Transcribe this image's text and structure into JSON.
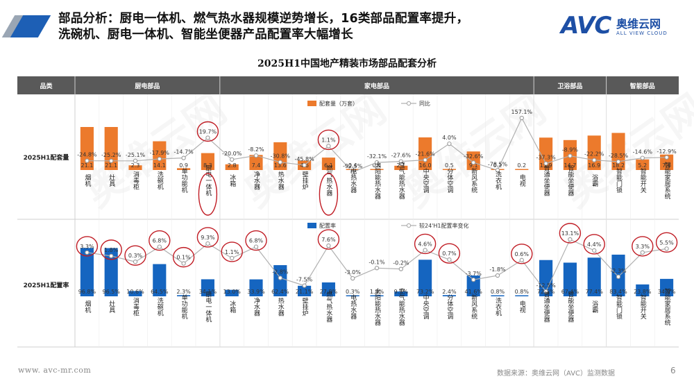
{
  "header": {
    "title_line1": "部品分析：厨电一体机、燃气热水器规模逆势增长，16类部品配置率提升，",
    "title_line2": "洗碗机、厨电一体机、智能坐便器产品配置率大幅增长"
  },
  "logo": {
    "mark": "AVC",
    "cn": "奥维云网",
    "en": "ALL VIEW CLOUD",
    "color": "#1d4fa5"
  },
  "watermark": "奥维云网",
  "footer": {
    "url": "www. avc-mr.com",
    "source": "数据来源：奥维云网（AVC）监测数据",
    "page": "6"
  },
  "colors": {
    "orange": "#ec7a2c",
    "blue": "#1565c0",
    "line": "#b0b0b0",
    "circle": "#c01c24",
    "header_bg": "#595959"
  },
  "chart_data": {
    "type": "bar",
    "title": "2025H1中国地产精装市场部品配套分析",
    "header_label": "品类",
    "groups": [
      {
        "name": "厨电部品",
        "count": 6
      },
      {
        "name": "家电部品",
        "count": 13
      },
      {
        "name": "卫浴部品",
        "count": 3
      },
      {
        "name": "智能部品",
        "count": 3
      }
    ],
    "categories": [
      "烟机",
      "灶具",
      "消毒柜",
      "洗碗机",
      "单功能机",
      "厨电一体机",
      "冰箱",
      "净水器",
      "热水器",
      "壁挂炉",
      "燃气热水器",
      "电热水器",
      "太阳能热水器",
      "空气能热水器",
      "中央空调",
      "分体空调",
      "新风系统",
      "洗衣机",
      "电视",
      "普通坐便器",
      "智能坐便器",
      "浴霸",
      "智能门锁",
      "智能开关",
      "智能家居系统"
    ],
    "panels": [
      {
        "row_label": "2025H1配套量",
        "legend": [
          "配套量（万套）",
          "同比"
        ],
        "values": [
          21.1,
          21.1,
          2.3,
          14.1,
          0.9,
          8.3,
          2.8,
          7.4,
          13.6,
          4.6,
          6.1,
          0.4,
          0.4,
          2.1,
          16.0,
          0.5,
          9.1,
          0.2,
          0.2,
          15.9,
          14.7,
          16.9,
          18.2,
          5.2,
          7.6
        ],
        "value_labels": [
          "21.1",
          "21.1",
          "2.3",
          "14.1",
          "0.9",
          "8.3",
          "2.8",
          "7.4",
          "13.6",
          "4.6",
          "6.1",
          "0.4",
          "0.4",
          "2.1",
          "16.0",
          "0.5",
          "9.1",
          "0.2",
          "0.2",
          "15.9",
          "14.7",
          "16.9",
          "18.2",
          "5.2",
          "7.6"
        ],
        "line": [
          -24.8,
          -25.2,
          -25.1,
          -17.9,
          -14.7,
          19.7,
          -20.0,
          -8.2,
          -30.8,
          -45.8,
          1.1,
          -92.5,
          -32.1,
          -27.6,
          -21.6,
          4.0,
          -32.6,
          -78.5,
          157.1,
          -37.3,
          -8.9,
          -22.2,
          -28.5,
          -14.6,
          -12.9
        ],
        "line_labels": [
          "-24.8%",
          "-25.2%",
          "-25.1%",
          "-17.9%",
          "-14.7%",
          "19.7%",
          "-20.0%",
          "-8.2%",
          "-30.8%",
          "-45.8%",
          "1.1%",
          "-92.5%",
          "-32.1%",
          "-27.6%",
          "-21.6%",
          "4.0%",
          "-32.6%",
          "-78.5%",
          "157.1%",
          "-37.3%",
          "-8.9%",
          "-22.2%",
          "-28.5%",
          "-14.6%",
          "-12.9%"
        ],
        "circled": [
          5,
          10
        ]
      },
      {
        "row_label": "2025H1配置率",
        "legend": [
          "配置率",
          "较24'H1配置率变化"
        ],
        "values": [
          96.8,
          96.5,
          10.6,
          64.5,
          2.3,
          34.1,
          13.0,
          33.9,
          62.4,
          21.1,
          27.8,
          0.3,
          1.8,
          9.7,
          73.2,
          2.4,
          41.6,
          0.8,
          0.8,
          72.6,
          67.4,
          77.4,
          83.4,
          23.8,
          34.9
        ],
        "value_labels": [
          "96.8%",
          "96.5%",
          "10.6%",
          "64.5%",
          "2.3%",
          "34.1%",
          "13.0%",
          "33.9%",
          "62.4%",
          "21.1%",
          "27.8%",
          "0.3%",
          "1.8%",
          "9.7%",
          "73.2%",
          "2.4%",
          "41.6%",
          "0.8%",
          "0.8%",
          "72.6%",
          "67.4%",
          "77.4%",
          "83.4%",
          "23.8%",
          "34.9%"
        ],
        "line": [
          3.3,
          1.8,
          0.3,
          6.8,
          0.1,
          9.3,
          1.1,
          6.8,
          -2.8,
          -7.5,
          7.6,
          -3.0,
          -0.1,
          -0.2,
          4.6,
          0.7,
          -3.7,
          -1.8,
          0.6,
          -12.5,
          13.1,
          4.4,
          -2.3,
          3.3,
          5.5
        ],
        "line_labels": [
          "3.3%",
          "1.8%",
          "0.3%",
          "6.8%",
          "0.1%",
          "9.3%",
          "1.1%",
          "6.8%",
          "-2.8%",
          "-7.5%",
          "7.6%",
          "-3.0%",
          "-0.1%",
          "-0.2%",
          "4.6%",
          "0.7%",
          "-3.7%",
          "-1.8%",
          "0.6%",
          "-12.5%",
          "13.1%",
          "4.4%",
          "-2.3%",
          "3.3%",
          "5.5%"
        ],
        "circled": [
          0,
          1,
          2,
          3,
          4,
          5,
          6,
          7,
          10,
          14,
          15,
          18,
          20,
          21,
          23,
          24
        ]
      }
    ]
  }
}
